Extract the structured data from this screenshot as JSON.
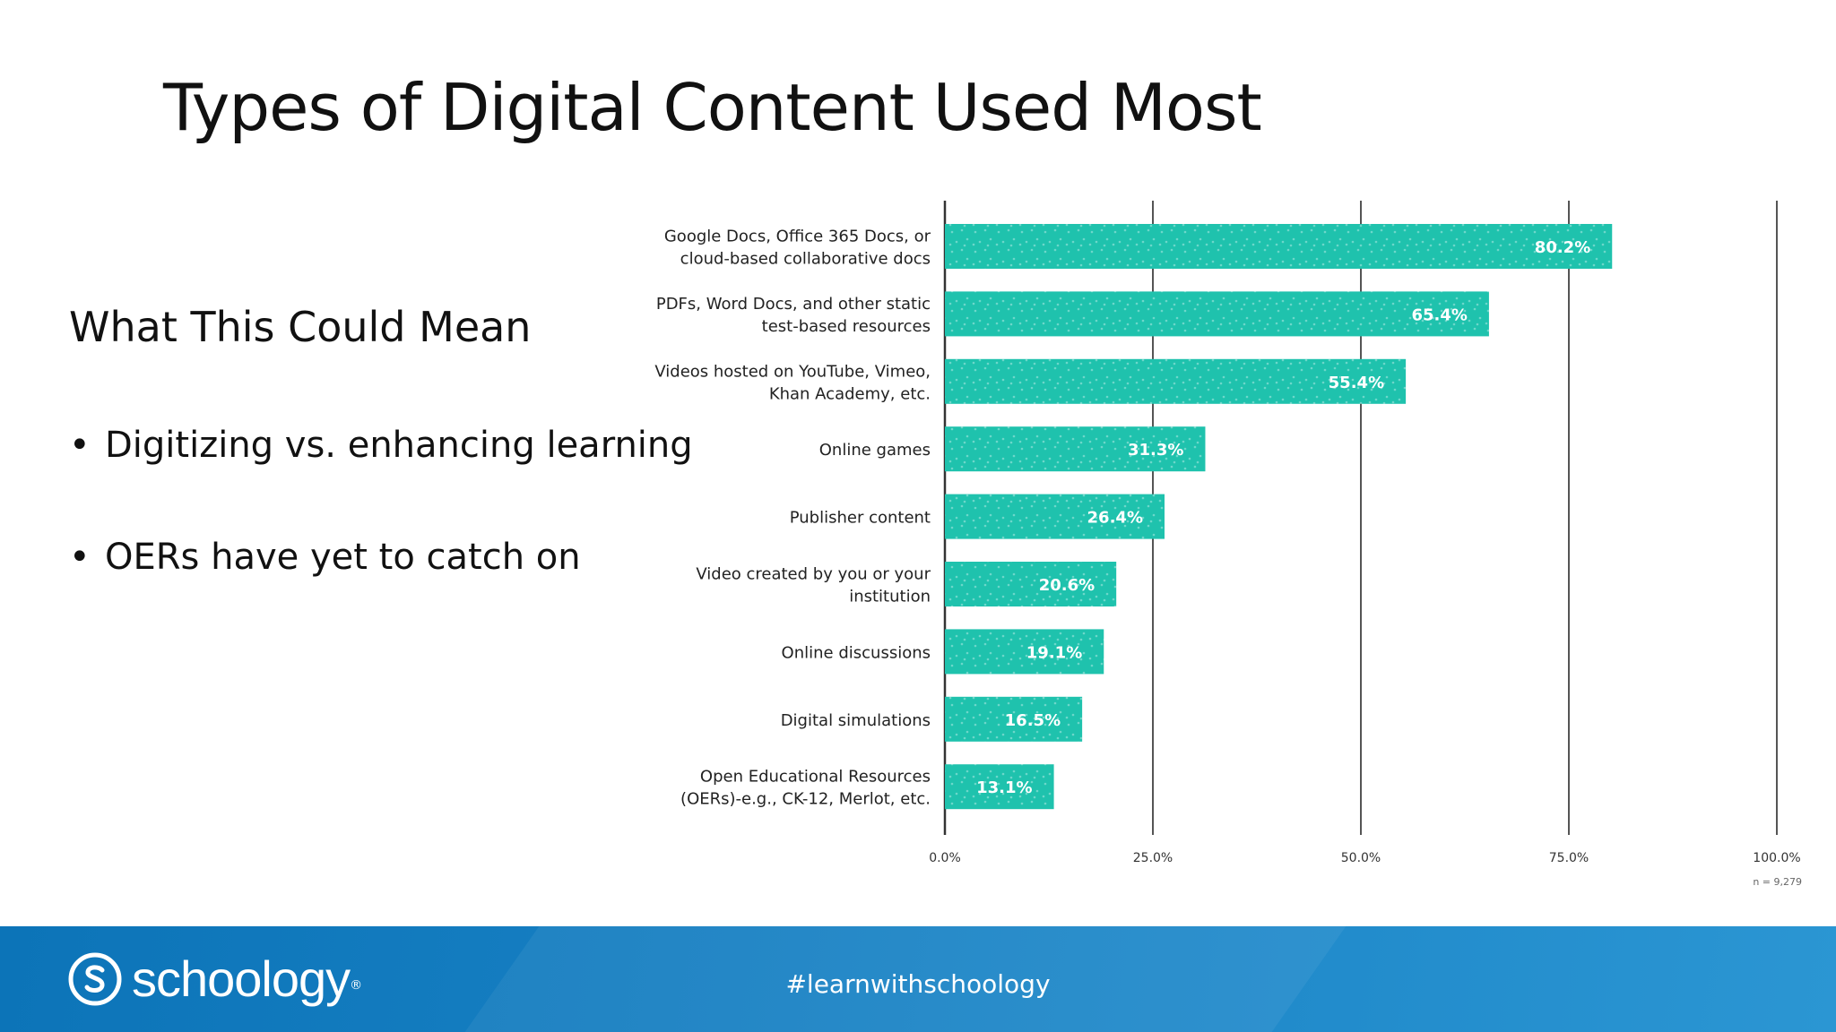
{
  "slide": {
    "title": "Types of Digital Content Used Most",
    "subheading": "What This Could Mean",
    "bullets": [
      "Digitizing vs. enhancing learning",
      "OERs have yet to catch on"
    ]
  },
  "footer": {
    "brand": "schoology",
    "hashtag": "#learnwithschoology"
  },
  "colors": {
    "bar": "#1fc2ad",
    "footer": "#1780c3",
    "gridline": "#555555"
  },
  "chart_data": {
    "type": "bar",
    "orientation": "horizontal",
    "categories": [
      [
        "Google Docs, Office 365 Docs, or",
        "cloud-based collaborative docs"
      ],
      [
        "PDFs, Word Docs, and other static",
        "test-based resources"
      ],
      [
        "Videos hosted on YouTube, Vimeo,",
        "Khan Academy, etc."
      ],
      [
        "Online games"
      ],
      [
        "Publisher content"
      ],
      [
        "Video created by you or your",
        "institution"
      ],
      [
        "Online discussions"
      ],
      [
        "Digital simulations"
      ],
      [
        "Open Educational Resources",
        "(OERs)-e.g., CK-12, Merlot, etc."
      ]
    ],
    "values": [
      80.2,
      65.4,
      55.4,
      31.3,
      26.4,
      20.6,
      19.1,
      16.5,
      13.1
    ],
    "value_labels": [
      "80.2%",
      "65.4%",
      "55.4%",
      "31.3%",
      "26.4%",
      "20.6%",
      "19.1%",
      "16.5%",
      "13.1%"
    ],
    "xlim": [
      0,
      100
    ],
    "xticks": [
      0,
      25,
      50,
      75,
      100
    ],
    "xtick_labels": [
      "0.0%",
      "25.0%",
      "50.0%",
      "75.0%",
      "100.0%"
    ],
    "note": "n = 9,279",
    "grid": true
  }
}
